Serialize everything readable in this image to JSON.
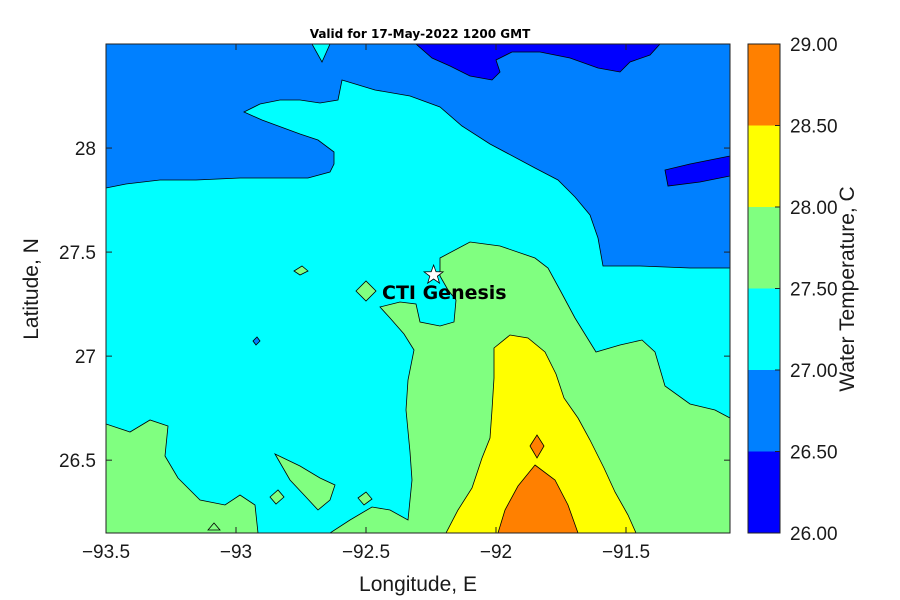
{
  "chart_data": {
    "type": "contour",
    "title": "Valid for 17-May-2022 1200 GMT",
    "xlabel": "Longitude, E",
    "ylabel": "Latitude, N",
    "xlim": [
      -93.5,
      -91.1
    ],
    "ylim": [
      26.15,
      28.5
    ],
    "x_ticks": [
      -93.5,
      -93,
      -92.5,
      -92,
      -91.5
    ],
    "x_tick_labels": [
      "−93.5",
      "−93",
      "−92.5",
      "−92",
      "−91.5"
    ],
    "y_ticks": [
      26.5,
      27,
      27.5,
      28
    ],
    "y_tick_labels": [
      "26.5",
      "27",
      "27.5",
      "28"
    ],
    "colorbar": {
      "label": "Water Temperature, C",
      "levels": [
        26.0,
        26.5,
        27.0,
        27.5,
        28.0,
        28.5,
        29.0
      ],
      "level_labels": [
        "26.00",
        "26.50",
        "27.00",
        "27.50",
        "28.00",
        "28.50",
        "29.00"
      ],
      "colors": [
        "#0000ff",
        "#0080ff",
        "#00ffff",
        "#80ff80",
        "#ffff00",
        "#ff8000"
      ]
    },
    "annotation": {
      "label": "CTI Genesis",
      "marker": "star-icon",
      "lon": -92.24,
      "lat": 27.39
    },
    "regions": [
      {
        "band": "26.5-27.0",
        "color": "#0080ff",
        "description_area": "north"
      },
      {
        "band": "27.0-27.5",
        "color": "#00ffff",
        "description_area": "central-west"
      },
      {
        "band": "27.5-28.0",
        "color": "#80ff80",
        "description_area": "southeast"
      },
      {
        "band": "28.0-28.5",
        "color": "#ffff00",
        "description_area": "south-central"
      },
      {
        "band": "28.5-29.0",
        "color": "#ff8000",
        "description_area": "south"
      },
      {
        "band": "26.0-26.5",
        "color": "#0000ff",
        "description_area": "far north"
      }
    ]
  }
}
